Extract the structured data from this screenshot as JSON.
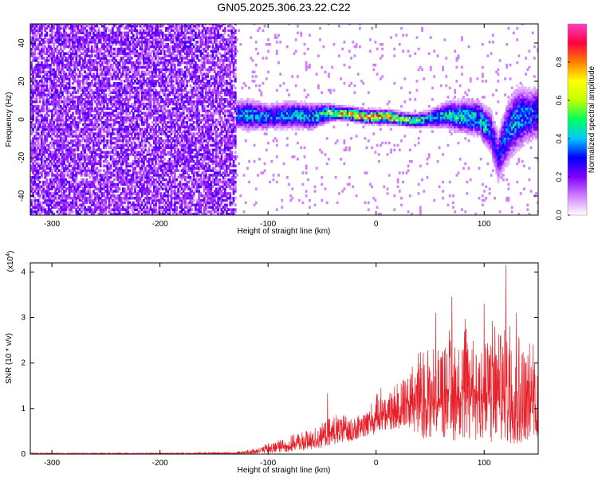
{
  "figure_title": "GN05.2025.306.23.22.C22",
  "chart_data": [
    {
      "type": "heatmap",
      "panel": "spectrogram",
      "xlabel": "Height of straight line (km)",
      "ylabel": "Frequency (Hz)",
      "xlim": [
        -320,
        150
      ],
      "ylim": [
        -50,
        50
      ],
      "x_ticks": [
        -300,
        -200,
        -100,
        0,
        100
      ],
      "x_tick_labels": [
        "-300",
        "-200",
        "-100",
        "0",
        "100"
      ],
      "y_ticks": [
        -40,
        -20,
        0,
        20,
        40
      ],
      "y_tick_labels": [
        "-40",
        "-20",
        "0",
        "20",
        "40"
      ],
      "colorbar": {
        "label": "Normalized spectral amplitude",
        "range": [
          0,
          1
        ],
        "ticks": [
          0,
          0.2,
          0.4,
          0.6,
          0.8
        ],
        "tick_labels": [
          "0.0",
          "0.2",
          "0.4",
          "0.6",
          "0.8"
        ],
        "colors": [
          "#ffffff",
          "#d080ff",
          "#8000ff",
          "#0000ff",
          "#00c8ff",
          "#00ff60",
          "#c0ff00",
          "#ffff00",
          "#ff8000",
          "#ff0040",
          "#ff40c0"
        ]
      },
      "noise_region_x": [
        -320,
        -130
      ],
      "ridge": {
        "x": [
          -135,
          -120,
          -100,
          -80,
          -60,
          -45,
          -35,
          -20,
          -10,
          0,
          10,
          20,
          35,
          50,
          65,
          80,
          95,
          100,
          105,
          112,
          120,
          130,
          140,
          150
        ],
        "freq": [
          2,
          2,
          1,
          2,
          1,
          3,
          3,
          2,
          1,
          1,
          1,
          0,
          -1,
          0,
          2,
          1,
          0,
          -4,
          -6,
          -20,
          -8,
          0,
          2,
          3
        ],
        "halfwidth": [
          6,
          7,
          6,
          6,
          6,
          4,
          3,
          3,
          3,
          3,
          3,
          3,
          3,
          4,
          6,
          7,
          8,
          8,
          10,
          12,
          14,
          14,
          12,
          12
        ],
        "peak_amplitude": [
          0.35,
          0.45,
          0.4,
          0.45,
          0.45,
          0.65,
          0.75,
          0.9,
          0.95,
          0.85,
          0.9,
          0.7,
          0.6,
          0.45,
          0.5,
          0.55,
          0.45,
          0.55,
          0.35,
          0.3,
          0.4,
          0.45,
          0.4,
          0.35
        ]
      }
    },
    {
      "type": "line",
      "panel": "snr",
      "xlabel": "Height of straight line (km)",
      "ylabel": "SNR (10 * v/v)",
      "y_multiplier_label": "(x10",
      "y_multiplier_exponent": "4",
      "xlim": [
        -320,
        150
      ],
      "ylim": [
        0,
        4.2
      ],
      "x_ticks": [
        -300,
        -200,
        -100,
        0,
        100
      ],
      "x_tick_labels": [
        "-300",
        "-200",
        "-100",
        "0",
        "100"
      ],
      "y_ticks": [
        0,
        1,
        2,
        3,
        4
      ],
      "y_tick_labels": [
        "0",
        "1",
        "2",
        "3",
        "4"
      ],
      "line_color": "#e8202a",
      "envelope": {
        "x": [
          -320,
          -200,
          -130,
          -115,
          -100,
          -80,
          -60,
          -45,
          -35,
          -20,
          -5,
          5,
          15,
          25,
          35,
          45,
          55,
          65,
          75,
          85,
          95,
          105,
          115,
          125,
          135,
          150
        ],
        "high": [
          0.03,
          0.03,
          0.05,
          0.1,
          0.25,
          0.4,
          0.55,
          0.75,
          0.9,
          0.8,
          1.1,
          1.5,
          1.4,
          1.9,
          2.2,
          2.5,
          2.3,
          3.0,
          2.6,
          3.1,
          2.6,
          3.0,
          2.8,
          3.4,
          2.4,
          2.5
        ],
        "low": [
          0.0,
          0.0,
          0.0,
          0.0,
          0.02,
          0.05,
          0.1,
          0.15,
          0.25,
          0.3,
          0.4,
          0.5,
          0.5,
          0.6,
          0.4,
          0.3,
          0.3,
          0.3,
          0.3,
          0.3,
          0.3,
          0.2,
          0.2,
          0.2,
          0.2,
          0.2
        ]
      },
      "peaks": [
        {
          "x": -45,
          "y": 1.33
        },
        {
          "x": 55,
          "y": 3.1
        },
        {
          "x": 70,
          "y": 3.45
        },
        {
          "x": 100,
          "y": 3.3
        },
        {
          "x": 120,
          "y": 4.15
        },
        {
          "x": 130,
          "y": 3.1
        },
        {
          "x": 145,
          "y": 2.4
        }
      ]
    }
  ]
}
